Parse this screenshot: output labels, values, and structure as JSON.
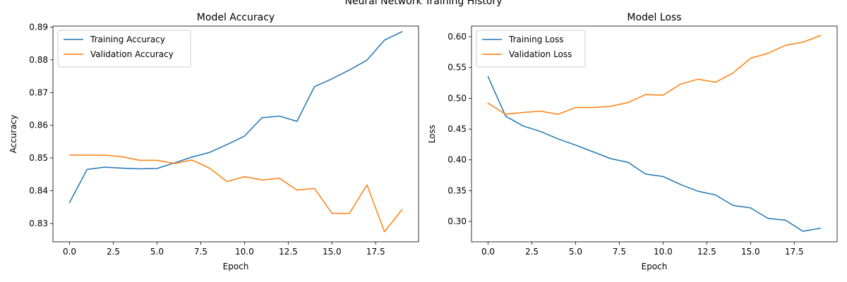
{
  "figure": {
    "suptitle": "Neural Network Training History"
  },
  "chart_data": [
    {
      "type": "line",
      "title": "Model Accuracy",
      "xlabel": "Epoch",
      "ylabel": "Accuracy",
      "xlim": [
        -0.95,
        19.95
      ],
      "ylim": [
        0.8244,
        0.8903
      ],
      "xticks": [
        0.0,
        2.5,
        5.0,
        7.5,
        10.0,
        12.5,
        15.0,
        17.5
      ],
      "xtick_labels": [
        "0.0",
        "2.5",
        "5.0",
        "7.5",
        "10.0",
        "12.5",
        "15.0",
        "17.5"
      ],
      "yticks": [
        0.83,
        0.84,
        0.85,
        0.86,
        0.87,
        0.88,
        0.89
      ],
      "ytick_labels": [
        "0.83",
        "0.84",
        "0.85",
        "0.86",
        "0.87",
        "0.88",
        "0.89"
      ],
      "legend_position": "top-left",
      "x": [
        0,
        1,
        2,
        3,
        4,
        5,
        6,
        7,
        8,
        9,
        10,
        11,
        12,
        13,
        14,
        15,
        16,
        17,
        18,
        19
      ],
      "series": [
        {
          "name": "Training Accuracy",
          "color": "#1f77b4",
          "values": [
            0.8364,
            0.8465,
            0.8472,
            0.8469,
            0.8467,
            0.8468,
            0.8485,
            0.8503,
            0.8517,
            0.8541,
            0.8567,
            0.8623,
            0.8628,
            0.8612,
            0.8718,
            0.8742,
            0.8769,
            0.8799,
            0.886,
            0.8886
          ]
        },
        {
          "name": "Validation Accuracy",
          "color": "#ff7f0e",
          "values": [
            0.8509,
            0.8509,
            0.8509,
            0.8504,
            0.8493,
            0.8493,
            0.8483,
            0.8494,
            0.8469,
            0.8428,
            0.8443,
            0.8433,
            0.8438,
            0.8402,
            0.8407,
            0.8331,
            0.8331,
            0.8418,
            0.8275,
            0.8342
          ]
        }
      ]
    },
    {
      "type": "line",
      "title": "Model Loss",
      "xlabel": "Epoch",
      "ylabel": "Loss",
      "xlim": [
        -0.95,
        19.95
      ],
      "ylim": [
        0.2669,
        0.6172
      ],
      "xticks": [
        0.0,
        2.5,
        5.0,
        7.5,
        10.0,
        12.5,
        15.0,
        17.5
      ],
      "xtick_labels": [
        "0.0",
        "2.5",
        "5.0",
        "7.5",
        "10.0",
        "12.5",
        "15.0",
        "17.5"
      ],
      "yticks": [
        0.3,
        0.35,
        0.4,
        0.45,
        0.5,
        0.55,
        0.6
      ],
      "ytick_labels": [
        "0.30",
        "0.35",
        "0.40",
        "0.45",
        "0.50",
        "0.55",
        "0.60"
      ],
      "legend_position": "top-left",
      "x": [
        0,
        1,
        2,
        3,
        4,
        5,
        6,
        7,
        8,
        9,
        10,
        11,
        12,
        13,
        14,
        15,
        16,
        17,
        18,
        19
      ],
      "series": [
        {
          "name": "Training Loss",
          "color": "#1f77b4",
          "values": [
            0.535,
            0.471,
            0.455,
            0.446,
            0.434,
            0.424,
            0.413,
            0.402,
            0.396,
            0.377,
            0.373,
            0.36,
            0.349,
            0.343,
            0.326,
            0.322,
            0.305,
            0.302,
            0.284,
            0.289
          ]
        },
        {
          "name": "Validation Loss",
          "color": "#ff7f0e",
          "values": [
            0.492,
            0.474,
            0.477,
            0.479,
            0.474,
            0.485,
            0.485,
            0.487,
            0.493,
            0.506,
            0.505,
            0.523,
            0.531,
            0.526,
            0.541,
            0.565,
            0.573,
            0.586,
            0.591,
            0.602
          ]
        }
      ]
    }
  ]
}
